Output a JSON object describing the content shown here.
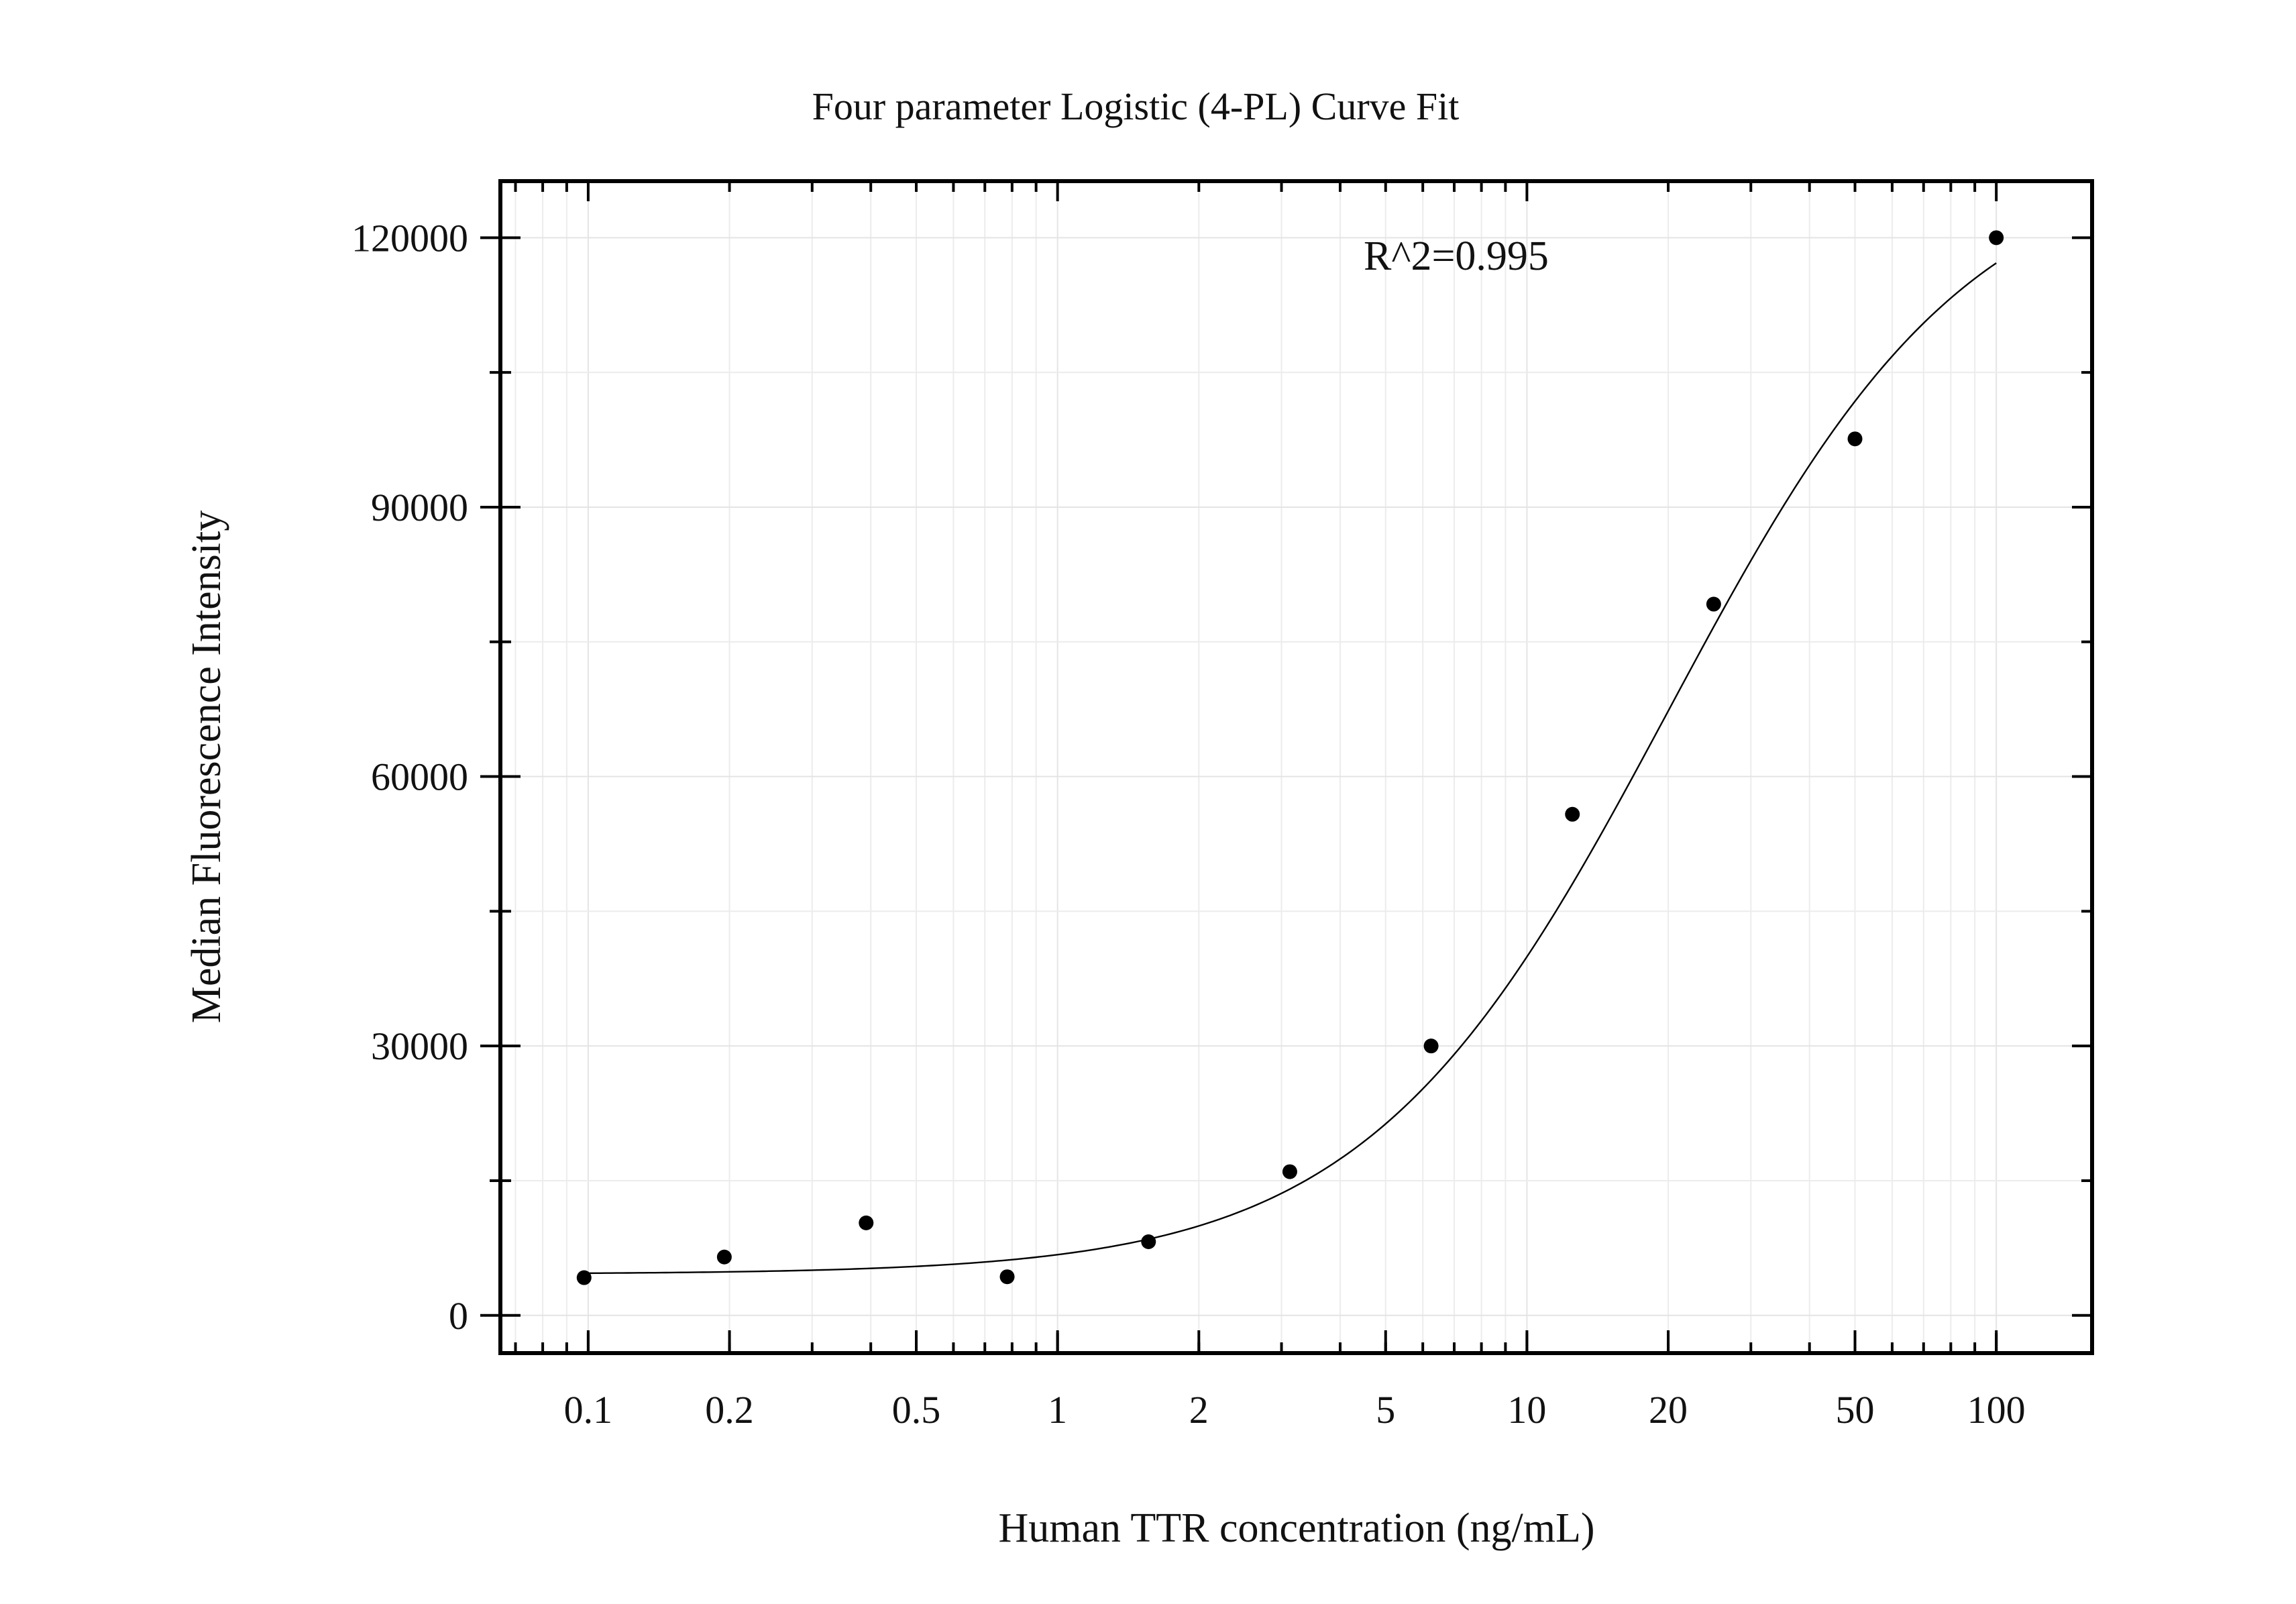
{
  "chart_data": {
    "type": "scatter",
    "title": "Four parameter Logistic (4-PL) Curve Fit",
    "xlabel": "Human TTR concentration (ng/mL)",
    "ylabel": "Median Fluorescence Intensity",
    "x_scale": "log",
    "xlim": [
      0.065,
      160
    ],
    "ylim": [
      -4200,
      126300
    ],
    "x_ticks": [
      0.1,
      0.2,
      0.5,
      1,
      2,
      5,
      10,
      20,
      50,
      100
    ],
    "x_tick_labels": [
      "0.1",
      "0.2",
      "0.5",
      "1",
      "2",
      "5",
      "10",
      "20",
      "50",
      "100"
    ],
    "y_ticks": [
      0,
      30000,
      60000,
      90000,
      120000
    ],
    "y_tick_labels": [
      "0",
      "30000",
      "60000",
      "90000",
      "120000"
    ],
    "grid": true,
    "annotation": "R^2=0.995",
    "series": [
      {
        "kind": "points",
        "x": [
          0.098,
          0.195,
          0.391,
          0.781,
          1.5625,
          3.125,
          6.25,
          12.5,
          25,
          50,
          100
        ],
        "y": [
          4200,
          6500,
          10300,
          4300,
          8200,
          16000,
          30000,
          55800,
          79200,
          97600,
          120000
        ]
      },
      {
        "kind": "fit",
        "model": "4PL",
        "params": {
          "bottom": 4600,
          "top": 130000,
          "ec50": 20,
          "hill": 1.35
        },
        "x_range": [
          0.098,
          100
        ]
      }
    ]
  }
}
